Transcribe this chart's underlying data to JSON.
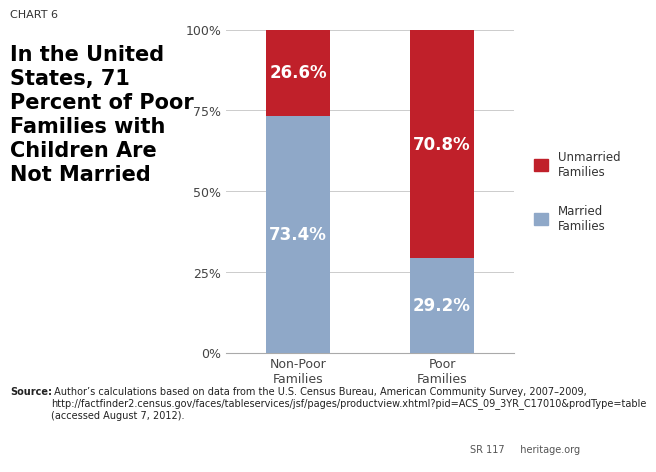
{
  "chart_label": "CHART 6",
  "title_line1": "In the United",
  "title_line2": "States, 71",
  "title_line3": "Percent of Poor",
  "title_line4": "Families with",
  "title_line5": "Children Are",
  "title_line6": "Not Married",
  "categories": [
    "Non-Poor\nFamilies",
    "Poor\nFamilies"
  ],
  "married_values": [
    73.4,
    29.2
  ],
  "unmarried_values": [
    26.6,
    70.8
  ],
  "married_labels": [
    "73.4%",
    "29.2%"
  ],
  "unmarried_labels": [
    "26.6%",
    "70.8%"
  ],
  "married_color": "#8FA8C8",
  "unmarried_color": "#C0202A",
  "background_color": "#FFFFFF",
  "legend_unmarried": "Unmarried\nFamilies",
  "legend_married": "Married\nFamilies",
  "yticks": [
    0,
    25,
    50,
    75,
    100
  ],
  "ytick_labels": [
    "0%",
    "25%",
    "50%",
    "75%",
    "100%"
  ],
  "source_bold": "Source:",
  "source_text": " Author’s calculations based on data from the U.S. Census Bureau, American Community Survey, 2007–2009, http://factfinder2.census.gov/faces/tableservices/jsf/pages/productview.xhtml?pid=ACS_09_3YR_C17010&prodType=table (accessed August 7, 2012).",
  "footer_right": "SR 117     heritage.org",
  "bar_width": 0.45,
  "label_fontsize": 12,
  "tick_fontsize": 9,
  "title_fontsize": 15
}
